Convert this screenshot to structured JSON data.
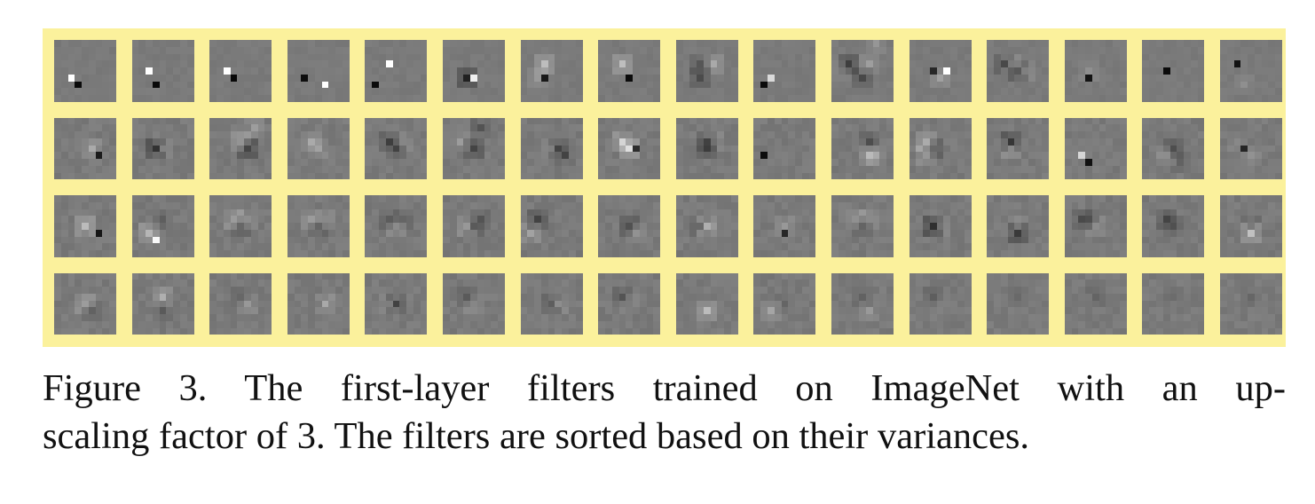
{
  "figure": {
    "caption_line1": "Figure 3. The first-layer filters trained on ImageNet with an up-",
    "caption_line2": "scaling factor of 3. The filters are sorted based on their variances.",
    "colors": {
      "frame": "#fbf19c",
      "filter_gray": "#7a7a7a"
    },
    "filters": [
      {
        "n": [
          [
            -2,
            3,
            160
          ],
          [
            -1,
            3,
            -110
          ]
        ]
      },
      {
        "n": [
          [
            -2,
            2,
            150
          ],
          [
            -1,
            3,
            -110
          ]
        ]
      },
      {
        "n": [
          [
            -2,
            2,
            150
          ],
          [
            -1,
            2,
            -110
          ]
        ]
      },
      {
        "n": [
          [
            -2,
            3,
            -110
          ],
          [
            1,
            3,
            150
          ]
        ]
      },
      {
        "n": [
          [
            -1,
            1,
            150
          ],
          [
            -3,
            3,
            -110
          ]
        ]
      },
      {
        "n": [
          [
            -1,
            3,
            -90
          ],
          [
            0,
            2,
            150
          ]
        ]
      },
      {
        "n": [
          [
            -1,
            1,
            70
          ],
          [
            -1,
            2,
            -110
          ],
          [
            -2,
            3,
            30
          ]
        ]
      },
      {
        "n": [
          [
            -1,
            1,
            70
          ],
          [
            0,
            2,
            -110
          ]
        ]
      },
      {
        "n": [
          [
            -1,
            1,
            -40
          ],
          [
            -1,
            2,
            -50
          ],
          [
            1,
            1,
            50
          ]
        ]
      },
      {
        "n": [
          [
            -2,
            3,
            100
          ],
          [
            -3,
            3,
            -110
          ]
        ]
      },
      {
        "n": [
          [
            -2,
            1,
            -70
          ],
          [
            0,
            2,
            -50
          ],
          [
            1,
            1,
            40
          ],
          [
            -3,
            1,
            20
          ],
          [
            2,
            -2,
            30
          ]
        ]
      },
      {
        "n": [
          [
            -1,
            2,
            -100
          ],
          [
            0,
            2,
            40
          ],
          [
            1,
            2,
            140
          ]
        ]
      },
      {
        "n": [
          [
            -2,
            1,
            -60
          ],
          [
            0,
            1,
            -60
          ],
          [
            -1,
            1,
            40
          ],
          [
            1,
            1,
            30
          ]
        ]
      },
      {
        "n": [
          [
            -1,
            3,
            -110
          ],
          [
            -1,
            1,
            20
          ]
        ]
      },
      {
        "n": [
          [
            -1,
            2,
            -110
          ]
        ]
      },
      {
        "n": [
          [
            -2,
            1,
            -100
          ],
          [
            -1,
            3,
            20
          ]
        ]
      },
      {
        "n": [
          [
            1,
            2,
            50
          ],
          [
            2,
            2,
            -110
          ]
        ]
      },
      {
        "n": [
          [
            -1,
            2,
            -90
          ],
          [
            0,
            1,
            40
          ]
        ]
      },
      {
        "n": [
          [
            0,
            1,
            60
          ],
          [
            1,
            1,
            -80
          ],
          [
            2,
            -1,
            30
          ]
        ]
      },
      {
        "n": [
          [
            -1,
            1,
            40
          ],
          [
            0,
            1,
            -30
          ],
          [
            0,
            2,
            60
          ]
        ]
      },
      {
        "n": [
          [
            -1,
            1,
            -50
          ],
          [
            0,
            1,
            -40
          ],
          [
            1,
            1,
            20
          ]
        ]
      },
      {
        "n": [
          [
            -2,
            1,
            30
          ],
          [
            0,
            1,
            -60
          ],
          [
            1,
            -1,
            -40
          ]
        ]
      },
      {
        "n": [
          [
            1,
            2,
            -60
          ],
          [
            2,
            2,
            -30
          ],
          [
            0,
            2,
            30
          ]
        ]
      },
      {
        "n": [
          [
            -1,
            1,
            60
          ],
          [
            0,
            1,
            80
          ],
          [
            1,
            2,
            -100
          ]
        ]
      },
      {
        "n": [
          [
            0,
            1,
            -50
          ],
          [
            0,
            1,
            -50
          ],
          [
            1,
            1,
            30
          ]
        ]
      },
      {
        "n": [
          [
            -3,
            3,
            -110
          ]
        ]
      },
      {
        "n": [
          [
            1,
            1,
            -40
          ],
          [
            1,
            2,
            50
          ],
          [
            2,
            3,
            30
          ]
        ]
      },
      {
        "n": [
          [
            -2,
            1,
            70
          ],
          [
            -1,
            1,
            -60
          ],
          [
            -2,
            3,
            50
          ]
        ]
      },
      {
        "n": [
          [
            -1,
            1,
            -80
          ],
          [
            -1,
            1,
            40
          ]
        ]
      },
      {
        "n": [
          [
            -2,
            3,
            100
          ],
          [
            -1,
            3,
            -100
          ]
        ]
      },
      {
        "n": [
          [
            0,
            2,
            -60
          ],
          [
            1,
            3,
            -30
          ],
          [
            -1,
            3,
            40
          ]
        ]
      },
      {
        "n": [
          [
            -1,
            2,
            -100
          ],
          [
            0,
            2,
            30
          ],
          [
            -2,
            1,
            20
          ]
        ]
      },
      {
        "n": [
          [
            0,
            2,
            60
          ],
          [
            2,
            2,
            -100
          ]
        ]
      },
      {
        "n": [
          [
            -2,
            3,
            60
          ],
          [
            -1,
            3,
            100
          ],
          [
            0,
            1,
            -30
          ]
        ]
      },
      {
        "n": [
          [
            -1,
            1,
            50
          ],
          [
            0,
            1,
            -40
          ],
          [
            1,
            1,
            30
          ]
        ]
      },
      {
        "n": [
          [
            -1,
            1,
            40
          ],
          [
            0,
            1,
            -40
          ],
          [
            1,
            1,
            30
          ]
        ]
      },
      {
        "n": [
          [
            -1,
            1,
            -40
          ],
          [
            0,
            1,
            40
          ],
          [
            1,
            1,
            -30
          ]
        ]
      },
      {
        "n": [
          [
            -1,
            2,
            40
          ],
          [
            0,
            1,
            -40
          ],
          [
            1,
            1,
            -30
          ]
        ]
      },
      {
        "n": [
          [
            -2,
            1,
            -60
          ],
          [
            -3,
            2,
            40
          ]
        ]
      },
      {
        "n": [
          [
            0,
            2,
            -60
          ],
          [
            1,
            2,
            40
          ]
        ]
      },
      {
        "n": [
          [
            0,
            2,
            70
          ],
          [
            -1,
            1,
            -40
          ]
        ]
      },
      {
        "n": [
          [
            0,
            3,
            -100
          ],
          [
            0,
            1,
            30
          ]
        ]
      },
      {
        "n": [
          [
            -1,
            1,
            40
          ],
          [
            0,
            1,
            -40
          ],
          [
            1,
            1,
            30
          ]
        ]
      },
      {
        "n": [
          [
            -1,
            2,
            -90
          ],
          [
            0,
            1,
            30
          ]
        ]
      },
      {
        "n": [
          [
            0,
            3,
            -80
          ],
          [
            0,
            1,
            30
          ]
        ]
      },
      {
        "n": [
          [
            -1,
            1,
            -40
          ],
          [
            0,
            1,
            30
          ],
          [
            -2,
            1,
            -30
          ]
        ]
      },
      {
        "n": [
          [
            -1,
            1,
            -50
          ],
          [
            0,
            1,
            -30
          ]
        ]
      },
      {
        "n": [
          [
            0,
            3,
            80
          ],
          [
            0,
            1,
            -30
          ]
        ]
      },
      {
        "n": [
          [
            0,
            2,
            50
          ],
          [
            1,
            2,
            -40
          ]
        ]
      },
      {
        "n": [
          [
            0,
            1,
            50
          ],
          [
            0,
            2,
            -30
          ]
        ]
      },
      {
        "n": [
          [
            0,
            1,
            -30
          ],
          [
            1,
            1,
            40
          ]
        ]
      },
      {
        "n": [
          [
            1,
            2,
            50
          ],
          [
            0,
            1,
            -20
          ]
        ]
      },
      {
        "n": [
          [
            0,
            2,
            -60
          ],
          [
            -1,
            1,
            30
          ]
        ]
      },
      {
        "n": [
          [
            -1,
            1,
            -40
          ],
          [
            0,
            1,
            30
          ]
        ]
      },
      {
        "n": [
          [
            0,
            2,
            -40
          ],
          [
            1,
            1,
            30
          ]
        ]
      },
      {
        "n": [
          [
            -1,
            1,
            -40
          ],
          [
            0,
            1,
            20
          ]
        ]
      },
      {
        "n": [
          [
            0,
            3,
            60
          ]
        ]
      },
      {
        "n": [
          [
            -2,
            3,
            50
          ],
          [
            0,
            1,
            -20
          ]
        ]
      },
      {
        "n": [
          [
            0,
            1,
            -30
          ],
          [
            1,
            2,
            30
          ]
        ]
      },
      {
        "n": [
          [
            -1,
            1,
            -30
          ],
          [
            0,
            1,
            20
          ]
        ]
      },
      {
        "n": [
          [
            0,
            1,
            -20
          ]
        ]
      },
      {
        "n": [
          [
            0,
            1,
            -20
          ]
        ]
      },
      {
        "n": [
          [
            0,
            1,
            -15
          ]
        ]
      },
      {
        "n": [
          [
            0,
            1,
            -15
          ]
        ]
      }
    ]
  }
}
